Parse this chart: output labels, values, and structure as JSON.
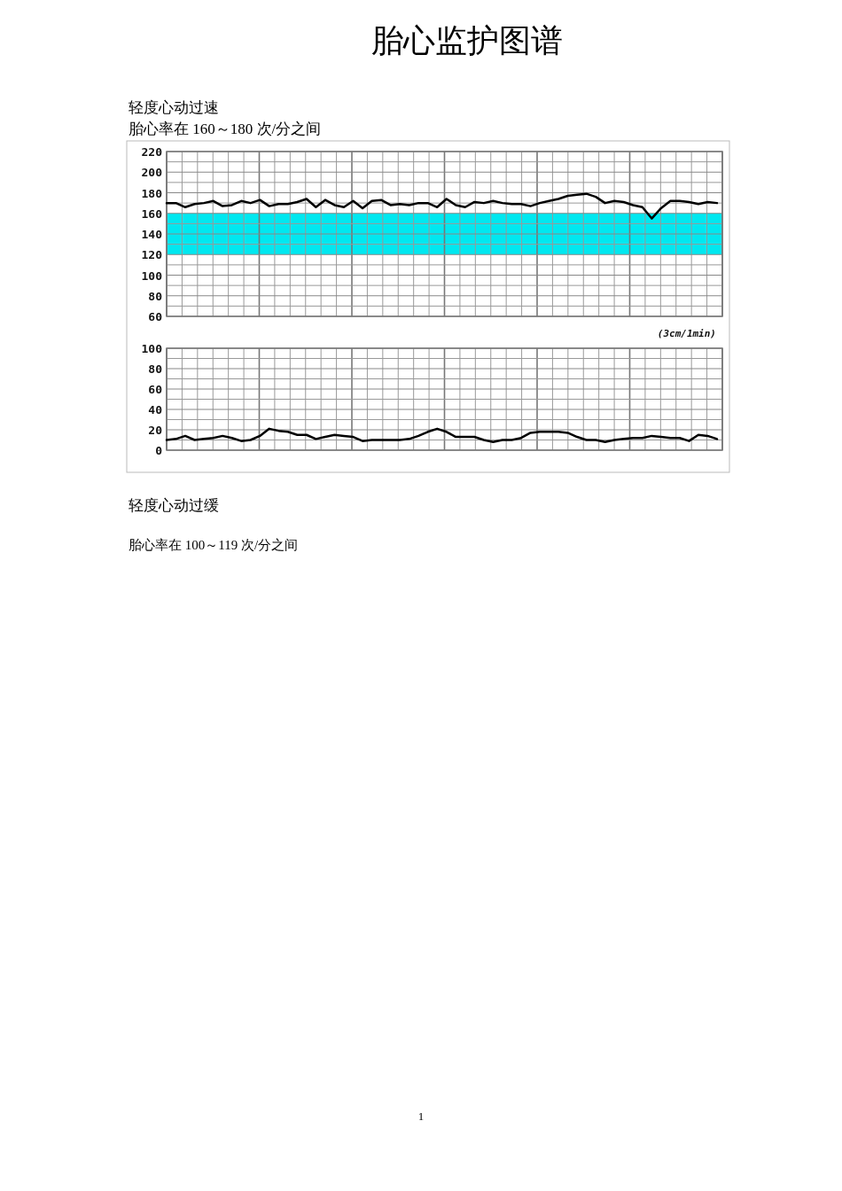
{
  "chart_data": [
    {
      "type": "line",
      "title": "胎心监护图谱",
      "subtitle": "轻度心动过速",
      "annotations": [
        "胎心率在 160～180 次/分之间",
        "(3cm/1min)"
      ],
      "categories": [
        null,
        null,
        null,
        null,
        null,
        null,
        null,
        null,
        null,
        null,
        null,
        null,
        null,
        null,
        null,
        null,
        null,
        null,
        null,
        null,
        null,
        null,
        null,
        null,
        null,
        null,
        null,
        null,
        null,
        null,
        null,
        null,
        null,
        null,
        null,
        null,
        null,
        null,
        null,
        null,
        null,
        null,
        null,
        null,
        null,
        null,
        null,
        null,
        null,
        null,
        null,
        null,
        null,
        null,
        null,
        null,
        null,
        null,
        null,
        null
      ],
      "series": [
        {
          "color": "#000000",
          "values": [
            170,
            170,
            166,
            169,
            170,
            172,
            167,
            168,
            172,
            170,
            173,
            167,
            169,
            169,
            171,
            174,
            166,
            173,
            168,
            166,
            172,
            165,
            172,
            173,
            168,
            169,
            168,
            170,
            170,
            166,
            174,
            168,
            166,
            171,
            170,
            172,
            170,
            169,
            169,
            167,
            170,
            172,
            174,
            177,
            178,
            179,
            176,
            170,
            172,
            171,
            168,
            166,
            155,
            165,
            172,
            172,
            171,
            169,
            171,
            170
          ]
        }
      ],
      "ylim": [
        60,
        220
      ],
      "yticks": [
        60,
        80,
        100,
        120,
        140,
        160,
        180,
        200,
        220
      ],
      "bands": [
        {
          "axis": "y",
          "from": 120,
          "to": 160,
          "color": "#00e8f0"
        }
      ],
      "grid": true
    },
    {
      "type": "line",
      "annotations": [
        "轻度心动过缓",
        "胎心率在 100～119 次/分之间",
        "1"
      ],
      "categories": [
        null,
        null,
        null,
        null,
        null,
        null,
        null,
        null,
        null,
        null,
        null,
        null,
        null,
        null,
        null,
        null,
        null,
        null,
        null,
        null,
        null,
        null,
        null,
        null,
        null,
        null,
        null,
        null,
        null,
        null,
        null,
        null,
        null,
        null,
        null,
        null,
        null,
        null,
        null,
        null,
        null,
        null,
        null,
        null,
        null,
        null,
        null,
        null,
        null,
        null,
        null,
        null,
        null,
        null,
        null,
        null,
        null,
        null,
        null,
        null
      ],
      "series": [
        {
          "color": "#000000",
          "values": [
            10,
            11,
            14,
            10,
            11,
            12,
            14,
            12,
            9,
            10,
            14,
            21,
            19,
            18,
            15,
            15,
            11,
            13,
            15,
            14,
            13,
            9,
            10,
            10,
            10,
            10,
            11,
            14,
            18,
            21,
            18,
            13,
            13,
            13,
            10,
            8,
            10,
            10,
            12,
            17,
            18,
            18,
            18,
            17,
            13,
            10,
            10,
            8,
            10,
            11,
            12,
            12,
            14,
            13,
            12,
            12,
            9,
            15,
            14,
            11
          ]
        }
      ],
      "ylim": [
        0,
        100
      ],
      "yticks": [
        0,
        20,
        40,
        60,
        80,
        100
      ],
      "grid": true
    }
  ]
}
